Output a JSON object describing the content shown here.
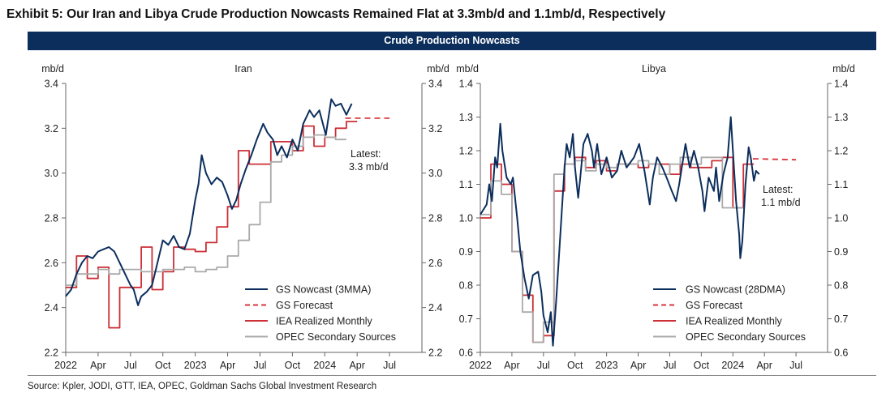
{
  "title": "Exhibit 5: Our Iran and Libya Crude Production Nowcasts Remained Flat at 3.3mb/d and 1.1mb/d, Respectively",
  "band_title": "Crude Production Nowcasts",
  "source": "Source: Kpler, JODI, GTT, IEA, OPEC, Goldman Sachs Global Investment Research",
  "colors": {
    "nowcast": "#0c2e5c",
    "forecast": "#d9363e",
    "iea": "#cc2f36",
    "opec": "#aaaaaa",
    "band": "#0c2e5c"
  },
  "chart_data": [
    {
      "type": "line",
      "title": "Iran",
      "ylabel_left": "mb/d",
      "ylabel_right": "mb/d",
      "x_unit": "months since Jan 2022",
      "xlim": [
        0,
        33
      ],
      "ylim": [
        2.2,
        3.4
      ],
      "yticks": [
        2.2,
        2.4,
        2.6,
        2.8,
        3.0,
        3.2,
        3.4
      ],
      "ytick_labels": [
        "2.2",
        "2.4",
        "2.6",
        "2.8",
        "3.0",
        "3.2",
        "3.4"
      ],
      "xticks": [
        0,
        3,
        6,
        9,
        12,
        15,
        18,
        21,
        24,
        27,
        30
      ],
      "xtick_labels": [
        "2022",
        "Apr",
        "Jul",
        "Oct",
        "2023",
        "Apr",
        "Jul",
        "Oct",
        "2024",
        "Apr",
        "Jul"
      ],
      "annotation": [
        "Latest:",
        "3.3 mb/d"
      ],
      "legend": [
        "GS Nowcast (3MMA)",
        "GS Forecast",
        "IEA Realized Monthly",
        "OPEC Secondary Sources"
      ],
      "legend_position": "bottom-right",
      "series": [
        {
          "name": "GS Nowcast (3MMA)",
          "kind": "line",
          "points": [
            [
              0,
              2.45
            ],
            [
              0.5,
              2.48
            ],
            [
              1,
              2.55
            ],
            [
              1.5,
              2.6
            ],
            [
              2,
              2.63
            ],
            [
              2.5,
              2.62
            ],
            [
              3,
              2.65
            ],
            [
              3.5,
              2.66
            ],
            [
              4,
              2.67
            ],
            [
              4.5,
              2.65
            ],
            [
              5,
              2.6
            ],
            [
              5.5,
              2.55
            ],
            [
              6,
              2.5
            ],
            [
              6.3,
              2.48
            ],
            [
              6.7,
              2.41
            ],
            [
              7,
              2.45
            ],
            [
              7.5,
              2.47
            ],
            [
              8,
              2.5
            ],
            [
              8.5,
              2.6
            ],
            [
              9,
              2.7
            ],
            [
              9.5,
              2.68
            ],
            [
              10,
              2.72
            ],
            [
              10.5,
              2.67
            ],
            [
              11,
              2.66
            ],
            [
              11.5,
              2.73
            ],
            [
              12,
              2.88
            ],
            [
              12.3,
              2.95
            ],
            [
              12.6,
              3.08
            ],
            [
              13,
              3.0
            ],
            [
              13.5,
              2.95
            ],
            [
              14,
              2.98
            ],
            [
              14.5,
              2.96
            ],
            [
              15,
              2.9
            ],
            [
              15.4,
              2.84
            ],
            [
              15.8,
              2.88
            ],
            [
              16.2,
              2.95
            ],
            [
              16.7,
              3.02
            ],
            [
              17.2,
              3.08
            ],
            [
              17.7,
              3.15
            ],
            [
              18.3,
              3.22
            ],
            [
              18.7,
              3.18
            ],
            [
              19.2,
              3.15
            ],
            [
              19.6,
              3.08
            ],
            [
              20,
              3.12
            ],
            [
              20.5,
              3.07
            ],
            [
              21,
              3.15
            ],
            [
              21.5,
              3.1
            ],
            [
              22,
              3.22
            ],
            [
              22.6,
              3.28
            ],
            [
              23,
              3.25
            ],
            [
              23.5,
              3.28
            ],
            [
              24.1,
              3.17
            ],
            [
              24.6,
              3.33
            ],
            [
              25,
              3.3
            ],
            [
              25.5,
              3.31
            ],
            [
              26,
              3.26
            ],
            [
              26.5,
              3.31
            ]
          ]
        },
        {
          "name": "GS Forecast",
          "kind": "dashed",
          "points": [
            [
              25.9,
              3.245
            ],
            [
              30,
              3.245
            ]
          ]
        },
        {
          "name": "IEA Realized Monthly",
          "kind": "step",
          "start": 0,
          "values": [
            2.49,
            2.63,
            2.53,
            2.58,
            2.31,
            2.49,
            2.49,
            2.67,
            2.48,
            2.56,
            2.67,
            2.66,
            2.65,
            2.69,
            2.76,
            2.85,
            3.1,
            3.04,
            3.04,
            3.14,
            3.14,
            3.1,
            3.21,
            3.12,
            3.16,
            3.2,
            3.23
          ]
        },
        {
          "name": "OPEC Secondary Sources",
          "kind": "step",
          "start": 0,
          "values": [
            2.5,
            2.55,
            2.55,
            2.57,
            2.55,
            2.57,
            2.57,
            2.56,
            2.56,
            2.57,
            2.57,
            2.58,
            2.56,
            2.57,
            2.58,
            2.63,
            2.7,
            2.77,
            2.87,
            3.05,
            3.08,
            3.12,
            3.16,
            3.17,
            3.16,
            3.15
          ]
        }
      ]
    },
    {
      "type": "line",
      "title": "Libya",
      "ylabel_left": "mb/d",
      "ylabel_right": "mb/d",
      "x_unit": "months since Jan 2022",
      "xlim": [
        0,
        33
      ],
      "ylim": [
        0.6,
        1.4
      ],
      "yticks": [
        0.6,
        0.7,
        0.8,
        0.9,
        1.0,
        1.1,
        1.2,
        1.3,
        1.4
      ],
      "ytick_labels": [
        "0.6",
        "0.7",
        "0.8",
        "0.9",
        "1.0",
        "1.1",
        "1.2",
        "1.3",
        "1.4"
      ],
      "xticks": [
        0,
        3,
        6,
        9,
        12,
        15,
        18,
        21,
        24,
        27,
        30
      ],
      "xtick_labels": [
        "2022",
        "Apr",
        "Jul",
        "Oct",
        "2023",
        "Apr",
        "Jul",
        "Oct",
        "2024",
        "Apr",
        "Jul"
      ],
      "annotation": [
        "Latest:",
        "1.1 mb/d"
      ],
      "legend": [
        "GS Nowcast (28DMA)",
        "GS Forecast",
        "IEA Realized Monthly",
        "OPEC Secondary Sources"
      ],
      "legend_position": "bottom-right",
      "series": [
        {
          "name": "GS Nowcast (28DMA)",
          "kind": "line",
          "points": [
            [
              0,
              1.01
            ],
            [
              0.6,
              1.04
            ],
            [
              0.85,
              1.1
            ],
            [
              1.1,
              1.05
            ],
            [
              1.4,
              1.18
            ],
            [
              1.6,
              1.15
            ],
            [
              1.9,
              1.28
            ],
            [
              2.1,
              1.2
            ],
            [
              2.5,
              1.12
            ],
            [
              2.9,
              1.1
            ],
            [
              3.1,
              1.12
            ],
            [
              3.5,
              1.0
            ],
            [
              3.8,
              0.9
            ],
            [
              4.2,
              0.82
            ],
            [
              4.6,
              0.76
            ],
            [
              5.0,
              0.83
            ],
            [
              5.5,
              0.84
            ],
            [
              5.8,
              0.78
            ],
            [
              6.0,
              0.71
            ],
            [
              6.4,
              0.66
            ],
            [
              6.7,
              0.72
            ],
            [
              6.9,
              0.62
            ],
            [
              7.2,
              0.75
            ],
            [
              7.6,
              0.95
            ],
            [
              7.8,
              1.05
            ],
            [
              8.0,
              1.15
            ],
            [
              8.2,
              1.22
            ],
            [
              8.5,
              1.18
            ],
            [
              8.8,
              1.25
            ],
            [
              9.0,
              1.15
            ],
            [
              9.3,
              1.06
            ],
            [
              9.5,
              1.12
            ],
            [
              9.8,
              1.22
            ],
            [
              10.2,
              1.25
            ],
            [
              10.6,
              1.2
            ],
            [
              10.8,
              1.15
            ],
            [
              11.1,
              1.22
            ],
            [
              11.5,
              1.13
            ],
            [
              12,
              1.18
            ],
            [
              12.5,
              1.12
            ],
            [
              13,
              1.14
            ],
            [
              13.4,
              1.2
            ],
            [
              13.9,
              1.15
            ],
            [
              14.6,
              1.18
            ],
            [
              15.1,
              1.22
            ],
            [
              15.6,
              1.14
            ],
            [
              16.1,
              1.04
            ],
            [
              16.4,
              1.12
            ],
            [
              16.8,
              1.18
            ],
            [
              17.3,
              1.15
            ],
            [
              17.7,
              1.12
            ],
            [
              18.2,
              1.08
            ],
            [
              18.6,
              1.05
            ],
            [
              18.9,
              1.1
            ],
            [
              19.5,
              1.22
            ],
            [
              19.9,
              1.15
            ],
            [
              20.3,
              1.2
            ],
            [
              20.7,
              1.15
            ],
            [
              21.1,
              1.08
            ],
            [
              21.3,
              1.02
            ],
            [
              21.7,
              1.12
            ],
            [
              22.2,
              1.08
            ],
            [
              22.4,
              1.15
            ],
            [
              22.7,
              1.05
            ],
            [
              23.1,
              1.13
            ],
            [
              23.5,
              1.18
            ],
            [
              23.8,
              1.3
            ],
            [
              24.0,
              1.2
            ],
            [
              24.3,
              1.05
            ],
            [
              24.6,
              0.95
            ],
            [
              24.7,
              0.88
            ],
            [
              24.9,
              0.93
            ],
            [
              25.2,
              1.1
            ],
            [
              25.5,
              1.21
            ],
            [
              25.7,
              1.18
            ],
            [
              26.0,
              1.11
            ],
            [
              26.2,
              1.14
            ],
            [
              26.5,
              1.13
            ]
          ]
        },
        {
          "name": "GS Forecast",
          "kind": "dashed",
          "points": [
            [
              25.9,
              1.176
            ],
            [
              30,
              1.173
            ]
          ]
        },
        {
          "name": "IEA Realized Monthly",
          "kind": "step",
          "start": 0,
          "values": [
            1.0,
            1.16,
            1.1,
            0.9,
            0.77,
            0.63,
            0.65,
            1.08,
            1.16,
            1.18,
            1.15,
            1.17,
            1.14,
            1.16,
            1.16,
            1.15,
            1.16,
            1.16,
            1.13,
            1.16,
            1.15,
            1.15,
            1.17,
            1.18,
            1.03,
            1.16
          ]
        },
        {
          "name": "OPEC Secondary Sources",
          "kind": "step",
          "start": 0,
          "values": [
            1.01,
            1.11,
            1.07,
            0.9,
            0.72,
            0.63,
            0.69,
            1.13,
            1.16,
            1.17,
            1.14,
            1.16,
            1.15,
            1.16,
            1.16,
            1.17,
            1.16,
            1.13,
            1.16,
            1.18,
            1.16,
            1.18,
            1.18,
            1.03,
            1.03
          ]
        }
      ]
    }
  ]
}
